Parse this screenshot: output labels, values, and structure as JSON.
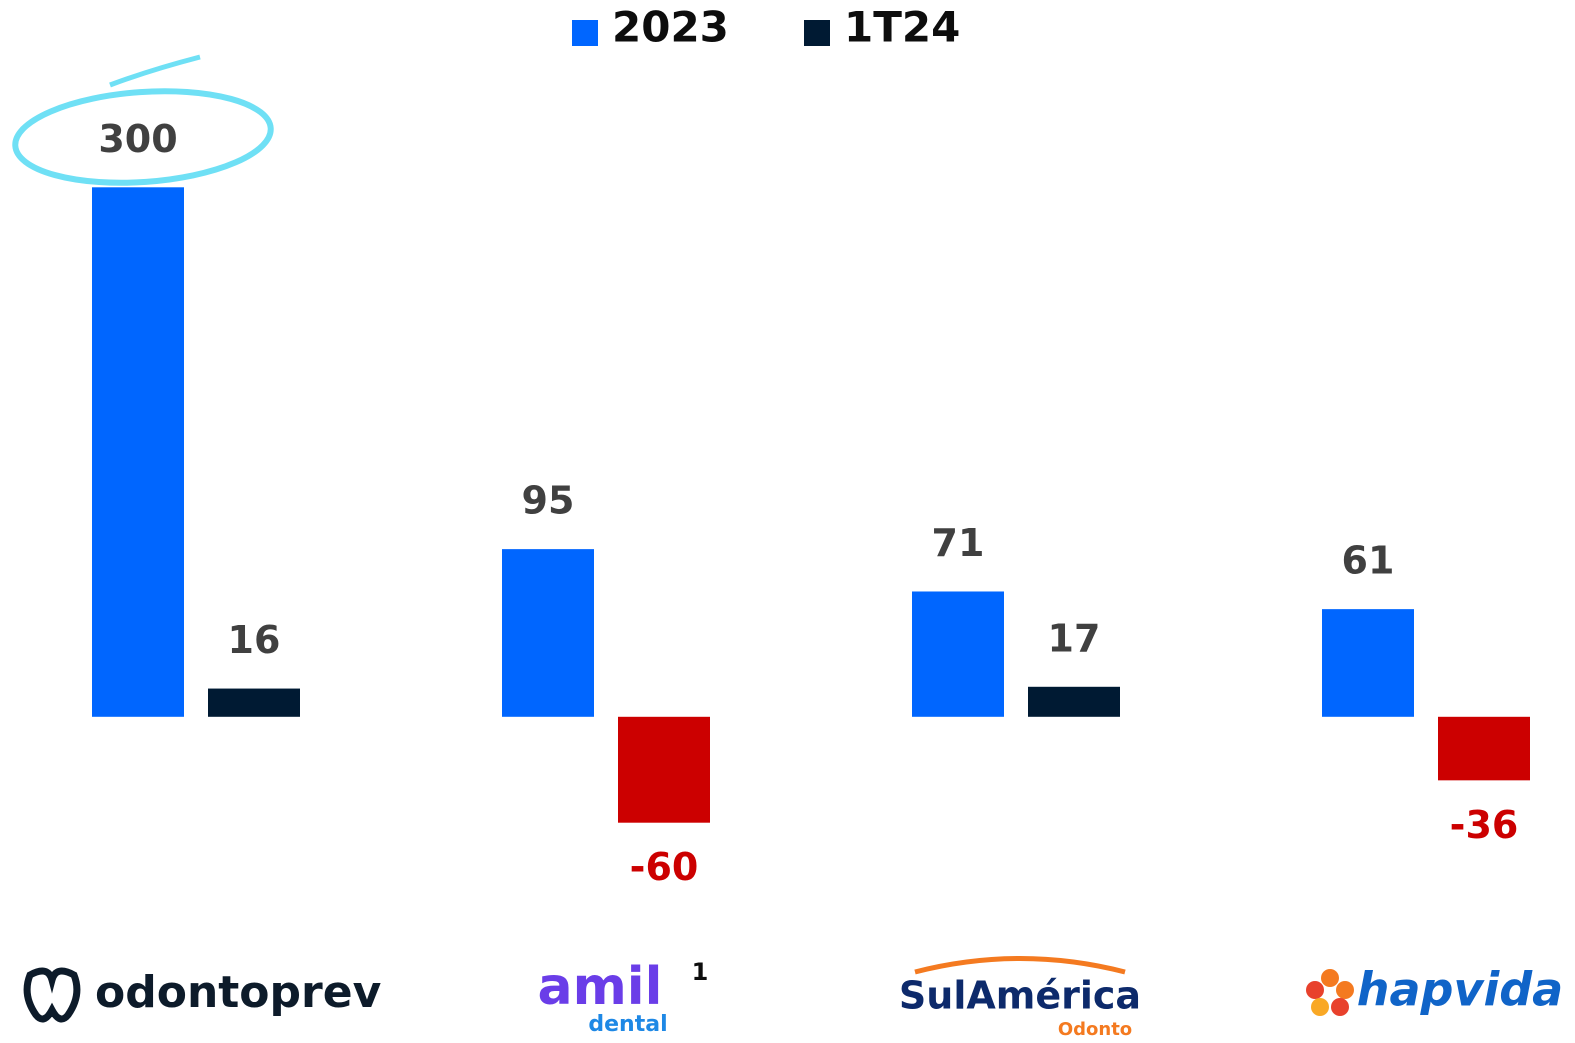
{
  "chart_data": {
    "type": "bar",
    "categories": [
      "odontoprev",
      "amil",
      "SulAmérica",
      "hapvida"
    ],
    "category_sublabels": [
      null,
      "dental",
      "Odonto",
      null
    ],
    "category_notes": [
      null,
      "1",
      null,
      null
    ],
    "series": [
      {
        "name": "2023",
        "color": "#0066ff",
        "values": [
          300,
          95,
          71,
          61
        ]
      },
      {
        "name": "1T24",
        "color": "#001a33",
        "values": [
          16,
          -60,
          17,
          -36
        ]
      }
    ],
    "negative_color": "#cc0000",
    "label_color": "#404040",
    "ylim": [
      -80,
      320
    ],
    "grid": false,
    "legend": "top"
  }
}
